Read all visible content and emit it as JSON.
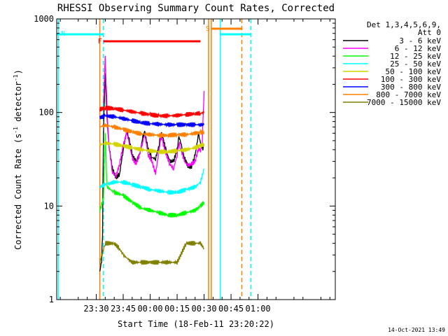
{
  "chart_data": {
    "type": "line",
    "title": "RHESSI Observing Summary Count Rates, Corrected",
    "xlabel": "Start Time (18-Feb-11 23:20:22)",
    "ylabel_main": "Corrected Count Rate (s",
    "ylabel_sup1": "-1",
    "ylabel_mid": " detector",
    "ylabel_sup2": "-1",
    "ylabel_end": ")",
    "yscale": "log",
    "ylim": [
      1,
      1000
    ],
    "xlim_minutes": [
      -52,
      103
    ],
    "x_tick_labels": [
      "23:30",
      "23:45",
      "00:00",
      "00:15",
      "00:30",
      "00:45",
      "01:00"
    ],
    "x_tick_minutes": [
      -30,
      -15,
      0,
      15,
      30,
      45,
      60
    ],
    "y_tick_labels": [
      "1",
      "10",
      "100",
      "1000"
    ],
    "y_tick_values": [
      1,
      10,
      100,
      1000
    ],
    "legend_header": [
      "Det 1,3,4,5,6,9,",
      "Att 0"
    ],
    "legend_position": "top-right",
    "timestamp": "14-Oct-2021 13:49",
    "series": [
      {
        "name": "3 - 6 keV",
        "color": "#000000",
        "data": [
          [
            -28,
            2
          ],
          [
            -27,
            2.6
          ],
          [
            -26.5,
            5
          ],
          [
            -26,
            60
          ],
          [
            -25,
            270
          ],
          [
            -24,
            90
          ],
          [
            -23,
            45
          ],
          [
            -21,
            25
          ],
          [
            -19,
            20
          ],
          [
            -17,
            22
          ],
          [
            -15,
            40
          ],
          [
            -13,
            65
          ],
          [
            -12,
            55
          ],
          [
            -10,
            35
          ],
          [
            -8,
            30
          ],
          [
            -6,
            35
          ],
          [
            -4,
            55
          ],
          [
            -3,
            60
          ],
          [
            -1,
            40
          ],
          [
            1,
            33
          ],
          [
            3,
            32
          ],
          [
            5,
            45
          ],
          [
            6,
            60
          ],
          [
            7,
            55
          ],
          [
            9,
            38
          ],
          [
            11,
            30
          ],
          [
            13,
            30
          ],
          [
            15,
            40
          ],
          [
            16,
            55
          ],
          [
            17,
            48
          ],
          [
            19,
            33
          ],
          [
            21,
            27
          ],
          [
            23,
            26
          ],
          [
            25,
            35
          ],
          [
            27,
            60
          ],
          [
            28,
            45
          ],
          [
            29,
            40
          ],
          [
            30,
            45
          ]
        ]
      },
      {
        "name": "6 - 12 keV",
        "color": "#ff00ff",
        "data": [
          [
            -26,
            120
          ],
          [
            -25,
            380
          ],
          [
            -24,
            110
          ],
          [
            -23,
            45
          ],
          [
            -21,
            23
          ],
          [
            -19,
            21
          ],
          [
            -17,
            28
          ],
          [
            -15,
            45
          ],
          [
            -13,
            60
          ],
          [
            -12,
            50
          ],
          [
            -10,
            33
          ],
          [
            -8,
            28
          ],
          [
            -6,
            35
          ],
          [
            -4,
            50
          ],
          [
            -3,
            58
          ],
          [
            -1,
            35
          ],
          [
            1,
            30
          ],
          [
            3,
            22
          ],
          [
            5,
            40
          ],
          [
            6,
            55
          ],
          [
            7,
            48
          ],
          [
            9,
            35
          ],
          [
            11,
            28
          ],
          [
            13,
            25
          ],
          [
            15,
            35
          ],
          [
            16,
            48
          ],
          [
            17,
            42
          ],
          [
            19,
            30
          ],
          [
            21,
            27
          ],
          [
            23,
            28
          ],
          [
            25,
            30
          ],
          [
            27,
            42
          ],
          [
            28,
            38
          ],
          [
            29,
            50
          ],
          [
            30,
            170
          ]
        ]
      },
      {
        "name": "12 - 25 keV",
        "color": "#00ff00",
        "data": [
          [
            -28,
            9
          ],
          [
            -26,
            12
          ],
          [
            -25,
            60
          ],
          [
            -24,
            16
          ],
          [
            -20,
            14
          ],
          [
            -15,
            13
          ],
          [
            -10,
            11
          ],
          [
            -5,
            9.5
          ],
          [
            0,
            9
          ],
          [
            5,
            8.5
          ],
          [
            10,
            8
          ],
          [
            15,
            8
          ],
          [
            20,
            8.5
          ],
          [
            25,
            9
          ],
          [
            28,
            10
          ],
          [
            30,
            11
          ]
        ]
      },
      {
        "name": "25 - 50 keV",
        "color": "#00ffff",
        "data": [
          [
            -28,
            16
          ],
          [
            -25,
            17
          ],
          [
            -20,
            18
          ],
          [
            -15,
            18
          ],
          [
            -10,
            17
          ],
          [
            -5,
            16
          ],
          [
            0,
            15
          ],
          [
            5,
            14.5
          ],
          [
            10,
            14
          ],
          [
            15,
            14
          ],
          [
            20,
            15
          ],
          [
            25,
            16
          ],
          [
            28,
            18
          ],
          [
            30,
            25
          ]
        ]
      },
      {
        "name": "50 - 100 keV",
        "color": "#d4d400",
        "data": [
          [
            -28,
            45
          ],
          [
            -25,
            47
          ],
          [
            -20,
            46
          ],
          [
            -15,
            44
          ],
          [
            -10,
            42
          ],
          [
            -5,
            40
          ],
          [
            0,
            39
          ],
          [
            5,
            38
          ],
          [
            10,
            38
          ],
          [
            15,
            39
          ],
          [
            20,
            40
          ],
          [
            25,
            42
          ],
          [
            28,
            44
          ],
          [
            30,
            46
          ]
        ]
      },
      {
        "name": "100 - 300 keV",
        "color": "#ff0000",
        "data": [
          [
            -28,
            108
          ],
          [
            -25,
            112
          ],
          [
            -20,
            110
          ],
          [
            -15,
            106
          ],
          [
            -10,
            102
          ],
          [
            -5,
            98
          ],
          [
            0,
            95
          ],
          [
            5,
            92
          ],
          [
            10,
            92
          ],
          [
            15,
            93
          ],
          [
            20,
            95
          ],
          [
            25,
            97
          ],
          [
            28,
            98
          ],
          [
            30,
            100
          ]
        ]
      },
      {
        "name": "300 - 800 keV",
        "color": "#0000ff",
        "data": [
          [
            -28,
            88
          ],
          [
            -25,
            92
          ],
          [
            -20,
            90
          ],
          [
            -15,
            86
          ],
          [
            -10,
            82
          ],
          [
            -5,
            78
          ],
          [
            0,
            76
          ],
          [
            5,
            75
          ],
          [
            10,
            74
          ],
          [
            15,
            74
          ],
          [
            20,
            74
          ],
          [
            25,
            74
          ],
          [
            28,
            74
          ],
          [
            30,
            74
          ]
        ]
      },
      {
        "name": "800 - 7000 keV",
        "color": "#ff8000",
        "data": [
          [
            -28,
            70
          ],
          [
            -25,
            73
          ],
          [
            -20,
            70
          ],
          [
            -15,
            66
          ],
          [
            -10,
            62
          ],
          [
            -5,
            59
          ],
          [
            0,
            58
          ],
          [
            5,
            57
          ],
          [
            10,
            57
          ],
          [
            15,
            58
          ],
          [
            20,
            58
          ],
          [
            25,
            60
          ],
          [
            28,
            61
          ],
          [
            30,
            62
          ]
        ]
      },
      {
        "name": "7000 - 15000 keV",
        "color": "#808000",
        "data": [
          [
            -28,
            2.5
          ],
          [
            -25,
            4
          ],
          [
            -20,
            4
          ],
          [
            -17,
            3.5
          ],
          [
            -15,
            3
          ],
          [
            -10,
            2.5
          ],
          [
            -5,
            2.5
          ],
          [
            0,
            2.5
          ],
          [
            5,
            2.5
          ],
          [
            10,
            2.5
          ],
          [
            15,
            2.5
          ],
          [
            17,
            3
          ],
          [
            20,
            4
          ],
          [
            25,
            4
          ],
          [
            28,
            4
          ],
          [
            30,
            3.5
          ]
        ]
      }
    ],
    "flag_bars": [
      {
        "label": "F",
        "color": "#ff0000",
        "x_start": -26,
        "x_end": 28
      },
      {
        "label": "N",
        "color": "#00ffff",
        "x_start": -52,
        "x_end": -26
      },
      {
        "label": "",
        "color": "#00ffff",
        "x_start": 39,
        "x_end": 56
      },
      {
        "label": "S",
        "color": "#ff8000",
        "x_start": 34,
        "x_end": 51
      }
    ],
    "vertical_markers": [
      {
        "x": -26,
        "color": "#00ffff",
        "style": "dashed"
      },
      {
        "x": 56,
        "color": "#00ffff",
        "style": "dashed"
      },
      {
        "x": 51,
        "color": "#ff8000",
        "style": "dashed"
      },
      {
        "x": -51,
        "color": "#00ffff",
        "style": "solid"
      },
      {
        "x": 39,
        "color": "#00ffff",
        "style": "solid"
      },
      {
        "x": -28,
        "color": "#ff8000",
        "style": "solid"
      },
      {
        "x": 32.5,
        "color": "#ff8000",
        "style": "solid"
      },
      {
        "x": 34,
        "color": "#ff8000",
        "style": "solid"
      }
    ]
  }
}
